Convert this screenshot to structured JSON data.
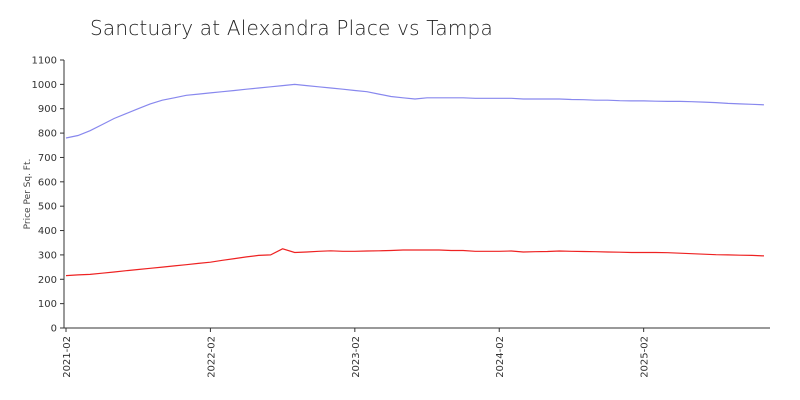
{
  "chart_data": {
    "type": "line",
    "title": "Sanctuary at Alexandra Place vs Tampa",
    "xlabel": "",
    "ylabel": "Price Per Sq. Ft.",
    "ylim": [
      0,
      1100
    ],
    "yticks": [
      0,
      100,
      200,
      300,
      400,
      500,
      600,
      700,
      800,
      900,
      1000,
      1100
    ],
    "xticks": [
      "2021-02",
      "2022-02",
      "2023-02",
      "2024-02",
      "2025-02"
    ],
    "x": [
      "2021-02",
      "2021-03",
      "2021-04",
      "2021-05",
      "2021-06",
      "2021-07",
      "2021-08",
      "2021-09",
      "2021-10",
      "2021-11",
      "2021-12",
      "2022-01",
      "2022-02",
      "2022-03",
      "2022-04",
      "2022-05",
      "2022-06",
      "2022-07",
      "2022-08",
      "2022-09",
      "2022-10",
      "2022-11",
      "2022-12",
      "2023-01",
      "2023-02",
      "2023-03",
      "2023-04",
      "2023-05",
      "2023-06",
      "2023-07",
      "2023-08",
      "2023-09",
      "2023-10",
      "2023-11",
      "2023-12",
      "2024-01",
      "2024-02",
      "2024-03",
      "2024-04",
      "2024-05",
      "2024-06",
      "2024-07",
      "2024-08",
      "2024-09",
      "2024-10",
      "2024-11",
      "2024-12",
      "2025-01",
      "2025-02",
      "2025-03",
      "2025-04",
      "2025-05",
      "2025-06",
      "2025-07",
      "2025-08",
      "2025-09",
      "2025-10",
      "2025-11",
      "2025-12"
    ],
    "series": [
      {
        "color": "#8888ee",
        "values": [
          780,
          790,
          810,
          835,
          860,
          880,
          900,
          920,
          935,
          945,
          955,
          960,
          965,
          970,
          975,
          980,
          985,
          990,
          995,
          1000,
          995,
          990,
          985,
          980,
          975,
          970,
          960,
          950,
          945,
          940,
          945,
          945,
          945,
          945,
          943,
          943,
          943,
          943,
          940,
          940,
          940,
          940,
          938,
          937,
          935,
          935,
          933,
          932,
          932,
          931,
          930,
          930,
          929,
          927,
          925,
          922,
          920,
          918,
          916
        ]
      },
      {
        "color": "#ee2222",
        "values": [
          215,
          218,
          220,
          225,
          230,
          235,
          240,
          245,
          250,
          255,
          260,
          265,
          270,
          278,
          285,
          292,
          298,
          300,
          325,
          310,
          312,
          315,
          317,
          315,
          315,
          316,
          317,
          318,
          320,
          320,
          320,
          320,
          318,
          318,
          315,
          315,
          315,
          316,
          312,
          313,
          314,
          316,
          315,
          314,
          313,
          312,
          311,
          310,
          310,
          310,
          309,
          307,
          305,
          303,
          301,
          300,
          299,
          298,
          296
        ]
      }
    ]
  }
}
